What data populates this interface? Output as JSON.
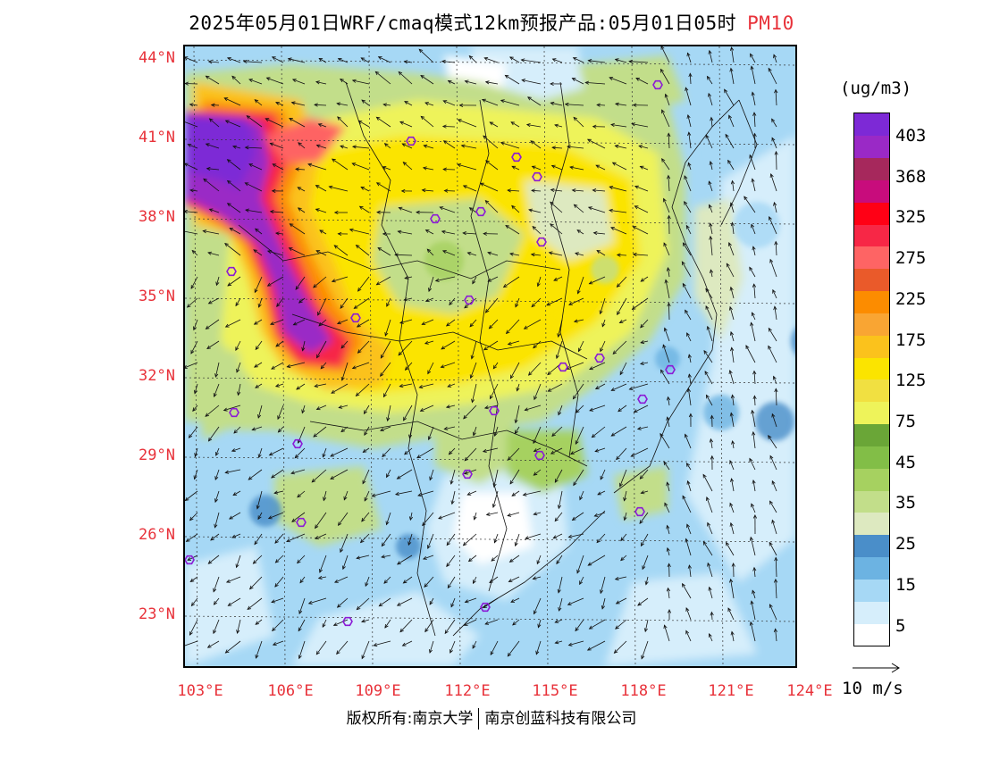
{
  "header": {
    "title": "2025年05月01日WRF/cmaq模式12km预报产品:05月01日05时",
    "product": "PM10"
  },
  "map": {
    "lat_labels": [
      "44°N",
      "41°N",
      "38°N",
      "35°N",
      "32°N",
      "29°N",
      "26°N",
      "23°N"
    ],
    "lon_labels": [
      "103°E",
      "106°E",
      "109°E",
      "112°E",
      "115°E",
      "118°E",
      "121°E",
      "124°E"
    ]
  },
  "legend": {
    "units": "(ug/m3)",
    "colors": [
      "#ffffff",
      "#d6eefb",
      "#a6d8f5",
      "#6cb3e2",
      "#4a8ec9",
      "#dde9c0",
      "#c2de8a",
      "#a6d160",
      "#82be47",
      "#6aa637",
      "#eef35a",
      "#f1e041",
      "#fbe400",
      "#fbc21c",
      "#f9a533",
      "#fc8c00",
      "#ea5a2a",
      "#fe6464",
      "#f72746",
      "#ff0015",
      "#c80c7c",
      "#a6285c",
      "#9a29c6",
      "#7d29d6"
    ],
    "labels": [
      "5",
      "15",
      "25",
      "35",
      "45",
      "75",
      "125",
      "175",
      "225",
      "275",
      "325",
      "368",
      "403"
    ],
    "vector_label": "10 m/s"
  },
  "footer": {
    "copyright": "版权所有:南京大学",
    "company": "南京创蓝科技有限公司"
  }
}
